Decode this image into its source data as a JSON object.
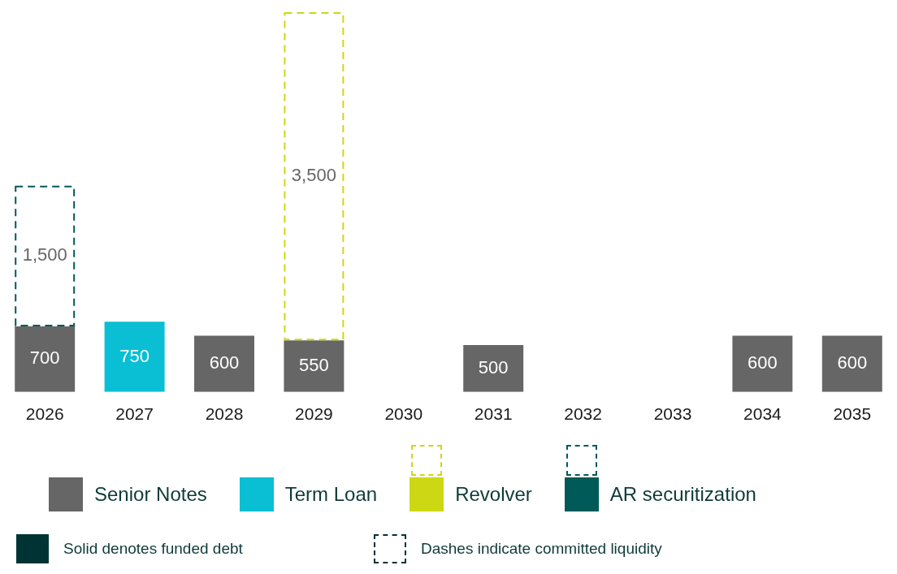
{
  "chart_data": {
    "type": "bar",
    "stacked": true,
    "legend": "bottom",
    "grid": false,
    "categories": [
      "2026",
      "2027",
      "2028",
      "2029",
      "2030",
      "2031",
      "2032",
      "2033",
      "2034",
      "2035"
    ],
    "series": [
      {
        "name": "Senior Notes",
        "color": "#666666",
        "values": [
          700,
          null,
          600,
          550,
          null,
          500,
          null,
          null,
          600,
          600
        ],
        "value_labels": [
          "700",
          null,
          "600",
          "550",
          null,
          "500",
          null,
          null,
          "600",
          "600"
        ]
      },
      {
        "name": "Term Loan",
        "color": "#0abed4",
        "values": [
          null,
          750,
          null,
          null,
          null,
          null,
          null,
          null,
          null,
          null
        ],
        "value_labels": [
          null,
          "750",
          null,
          null,
          null,
          null,
          null,
          null,
          null,
          null
        ]
      },
      {
        "name": "Revolver",
        "color": "#cdd814",
        "line_style": "dashed",
        "values": [
          null,
          null,
          null,
          3500,
          null,
          null,
          null,
          null,
          null,
          null
        ],
        "value_labels": [
          null,
          null,
          null,
          "3,500",
          null,
          null,
          null,
          null,
          null,
          null
        ]
      },
      {
        "name": "AR securitization",
        "color": "#005a57",
        "line_style": "dashed",
        "values": [
          1500,
          null,
          null,
          null,
          null,
          null,
          null,
          null,
          null,
          null
        ],
        "value_labels": [
          "1,500",
          null,
          null,
          null,
          null,
          null,
          null,
          null,
          null,
          null
        ]
      }
    ],
    "annotations": [
      "Solid denotes funded debt",
      "Dashes indicate committed liquidity"
    ]
  }
}
